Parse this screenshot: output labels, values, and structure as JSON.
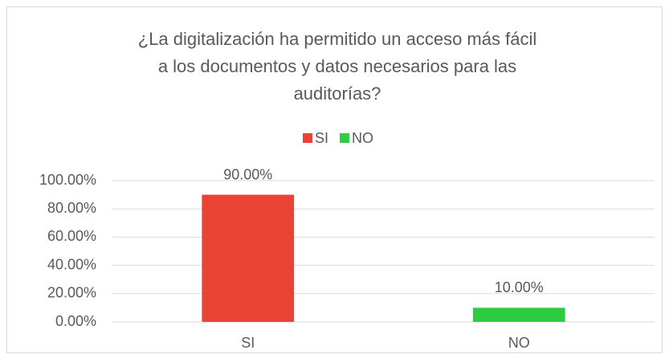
{
  "chart_data": {
    "type": "bar",
    "title": [
      "¿La digitalización ha permitido un acceso más fácil",
      "a los documentos y datos necesarios para las",
      "auditorías?"
    ],
    "categories": [
      "SI",
      "NO"
    ],
    "values": [
      90,
      10
    ],
    "value_labels": [
      "90.00%",
      "10.00%"
    ],
    "colors": [
      "#ea4335",
      "#2ecc40"
    ],
    "ylim": [
      0,
      100
    ],
    "yticks": [
      {
        "value": 0,
        "label": "0.00%"
      },
      {
        "value": 20,
        "label": "20.00%"
      },
      {
        "value": 40,
        "label": "40.00%"
      },
      {
        "value": 60,
        "label": "60.00%"
      },
      {
        "value": 80,
        "label": "80.00%"
      },
      {
        "value": 100,
        "label": "100.00%"
      }
    ],
    "grid": true,
    "legend": "top"
  }
}
